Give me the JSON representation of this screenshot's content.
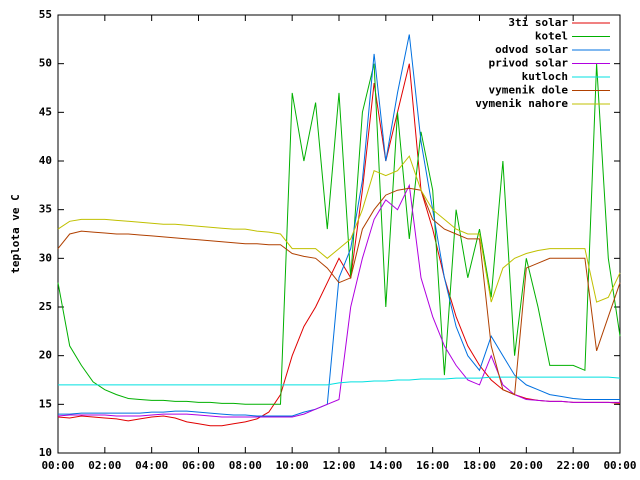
{
  "chart_data": {
    "type": "line",
    "y_label": "teplota ve C",
    "x": [
      0,
      0.5,
      1,
      1.5,
      2,
      2.5,
      3,
      3.5,
      4,
      4.5,
      5,
      5.5,
      6,
      6.5,
      7,
      7.5,
      8,
      8.5,
      9,
      9.5,
      10,
      10.5,
      11,
      11.5,
      12,
      12.5,
      13,
      13.5,
      14,
      14.5,
      15,
      15.5,
      16,
      16.5,
      17,
      17.5,
      18,
      18.5,
      19,
      19.5,
      20,
      20.5,
      21,
      21.5,
      22,
      22.5,
      23,
      23.5,
      24
    ],
    "xlim": [
      0,
      24
    ],
    "xticks": [
      {
        "value": 0,
        "label": "00:00"
      },
      {
        "value": 2,
        "label": "02:00"
      },
      {
        "value": 4,
        "label": "04:00"
      },
      {
        "value": 6,
        "label": "06:00"
      },
      {
        "value": 8,
        "label": "08:00"
      },
      {
        "value": 10,
        "label": "10:00"
      },
      {
        "value": 12,
        "label": "12:00"
      },
      {
        "value": 14,
        "label": "14:00"
      },
      {
        "value": 16,
        "label": "16:00"
      },
      {
        "value": 18,
        "label": "18:00"
      },
      {
        "value": 20,
        "label": "20:00"
      },
      {
        "value": 22,
        "label": "22:00"
      },
      {
        "value": 24,
        "label": "00:00"
      }
    ],
    "ylim": [
      10,
      55
    ],
    "yticks": [
      10,
      15,
      20,
      25,
      30,
      35,
      40,
      45,
      50,
      55
    ],
    "grid": false,
    "legend": "top-right",
    "series": [
      {
        "name": "3ti solar",
        "color": "#e00000",
        "values": [
          13.7,
          13.6,
          13.8,
          13.7,
          13.6,
          13.5,
          13.3,
          13.5,
          13.7,
          13.8,
          13.6,
          13.2,
          13.0,
          12.8,
          12.8,
          13.0,
          13.2,
          13.5,
          14.2,
          16,
          20,
          23,
          25,
          27.5,
          30,
          28,
          37,
          48,
          40,
          45,
          50,
          37,
          33,
          28,
          24,
          21,
          19,
          17.5,
          16.5,
          16,
          15.6,
          15.4,
          15.3,
          15.3,
          15.2,
          15.2,
          15.2,
          15.2,
          15.1
        ]
      },
      {
        "name": "kotel",
        "color": "#00b000",
        "values": [
          27.5,
          21,
          19,
          17.3,
          16.5,
          16,
          15.6,
          15.5,
          15.4,
          15.4,
          15.3,
          15.3,
          15.2,
          15.2,
          15.1,
          15.1,
          15.0,
          15.0,
          15.0,
          15.0,
          47,
          40,
          46,
          33,
          47,
          28,
          45,
          50,
          25,
          45,
          32,
          43,
          37,
          18,
          35,
          28,
          33,
          26,
          40,
          20,
          30,
          25,
          19,
          19,
          19,
          18.5,
          50,
          30,
          22
        ]
      },
      {
        "name": "odvod solar",
        "color": "#0070e0",
        "values": [
          14,
          14,
          14.1,
          14.1,
          14.1,
          14.1,
          14.1,
          14.1,
          14.2,
          14.2,
          14.3,
          14.3,
          14.2,
          14.1,
          14.0,
          13.9,
          13.9,
          13.8,
          13.8,
          13.8,
          13.8,
          14.2,
          14.5,
          15,
          28,
          31,
          38,
          51,
          40,
          47,
          53,
          42,
          35,
          28,
          23,
          20,
          18.5,
          22,
          20,
          18,
          17,
          16.5,
          16,
          15.8,
          15.6,
          15.5,
          15.5,
          15.5,
          15.5
        ]
      },
      {
        "name": "privod solar",
        "color": "#b000e0",
        "values": [
          13.8,
          13.9,
          13.9,
          13.9,
          13.9,
          13.8,
          13.8,
          13.8,
          13.9,
          14,
          14,
          14,
          13.9,
          13.8,
          13.7,
          13.7,
          13.7,
          13.7,
          13.7,
          13.7,
          13.7,
          14,
          14.5,
          15,
          15.5,
          25,
          30,
          34,
          36,
          35,
          37.5,
          28,
          24,
          21,
          19,
          17.5,
          17,
          20,
          17,
          16,
          15.5,
          15.4,
          15.3,
          15.3,
          15.2,
          15.2,
          15.2,
          15.2,
          15.2
        ]
      },
      {
        "name": "kutloch",
        "color": "#00e0e0",
        "values": [
          17.0,
          17.0,
          17.0,
          17.0,
          17.0,
          17.0,
          17.0,
          17.0,
          17.0,
          17.0,
          17.0,
          17.0,
          17.0,
          17.0,
          17.0,
          17.0,
          17.0,
          17.0,
          17.0,
          17.0,
          17.0,
          17.0,
          17.0,
          17.0,
          17.2,
          17.3,
          17.3,
          17.4,
          17.4,
          17.5,
          17.5,
          17.6,
          17.6,
          17.6,
          17.7,
          17.7,
          17.7,
          17.8,
          17.8,
          17.8,
          17.8,
          17.8,
          17.8,
          17.8,
          17.8,
          17.8,
          17.8,
          17.8,
          17.7
        ]
      },
      {
        "name": "vymenik dole",
        "color": "#b04000",
        "values": [
          31,
          32.5,
          32.8,
          32.7,
          32.6,
          32.5,
          32.5,
          32.4,
          32.3,
          32.2,
          32.1,
          32,
          31.9,
          31.8,
          31.7,
          31.6,
          31.5,
          31.5,
          31.4,
          31.4,
          30.5,
          30.2,
          30,
          29,
          27.5,
          28,
          33,
          35,
          36.5,
          37,
          37.2,
          37,
          34,
          33,
          32.5,
          32,
          32,
          21,
          16.5,
          16,
          29,
          29.5,
          30,
          30,
          30,
          30,
          20.5,
          24,
          27.5
        ]
      },
      {
        "name": "vymenik nahore",
        "color": "#c0c000",
        "values": [
          33,
          33.8,
          34,
          34,
          34,
          33.9,
          33.8,
          33.7,
          33.6,
          33.5,
          33.5,
          33.4,
          33.3,
          33.2,
          33.1,
          33,
          33,
          32.8,
          32.7,
          32.5,
          31,
          31,
          31,
          30,
          31,
          32,
          35,
          39,
          38.5,
          39,
          40.5,
          37,
          35,
          34,
          33,
          32.5,
          32.5,
          25.5,
          29,
          30,
          30.5,
          30.8,
          31,
          31,
          31,
          31,
          25.5,
          26,
          28.5
        ]
      }
    ]
  }
}
